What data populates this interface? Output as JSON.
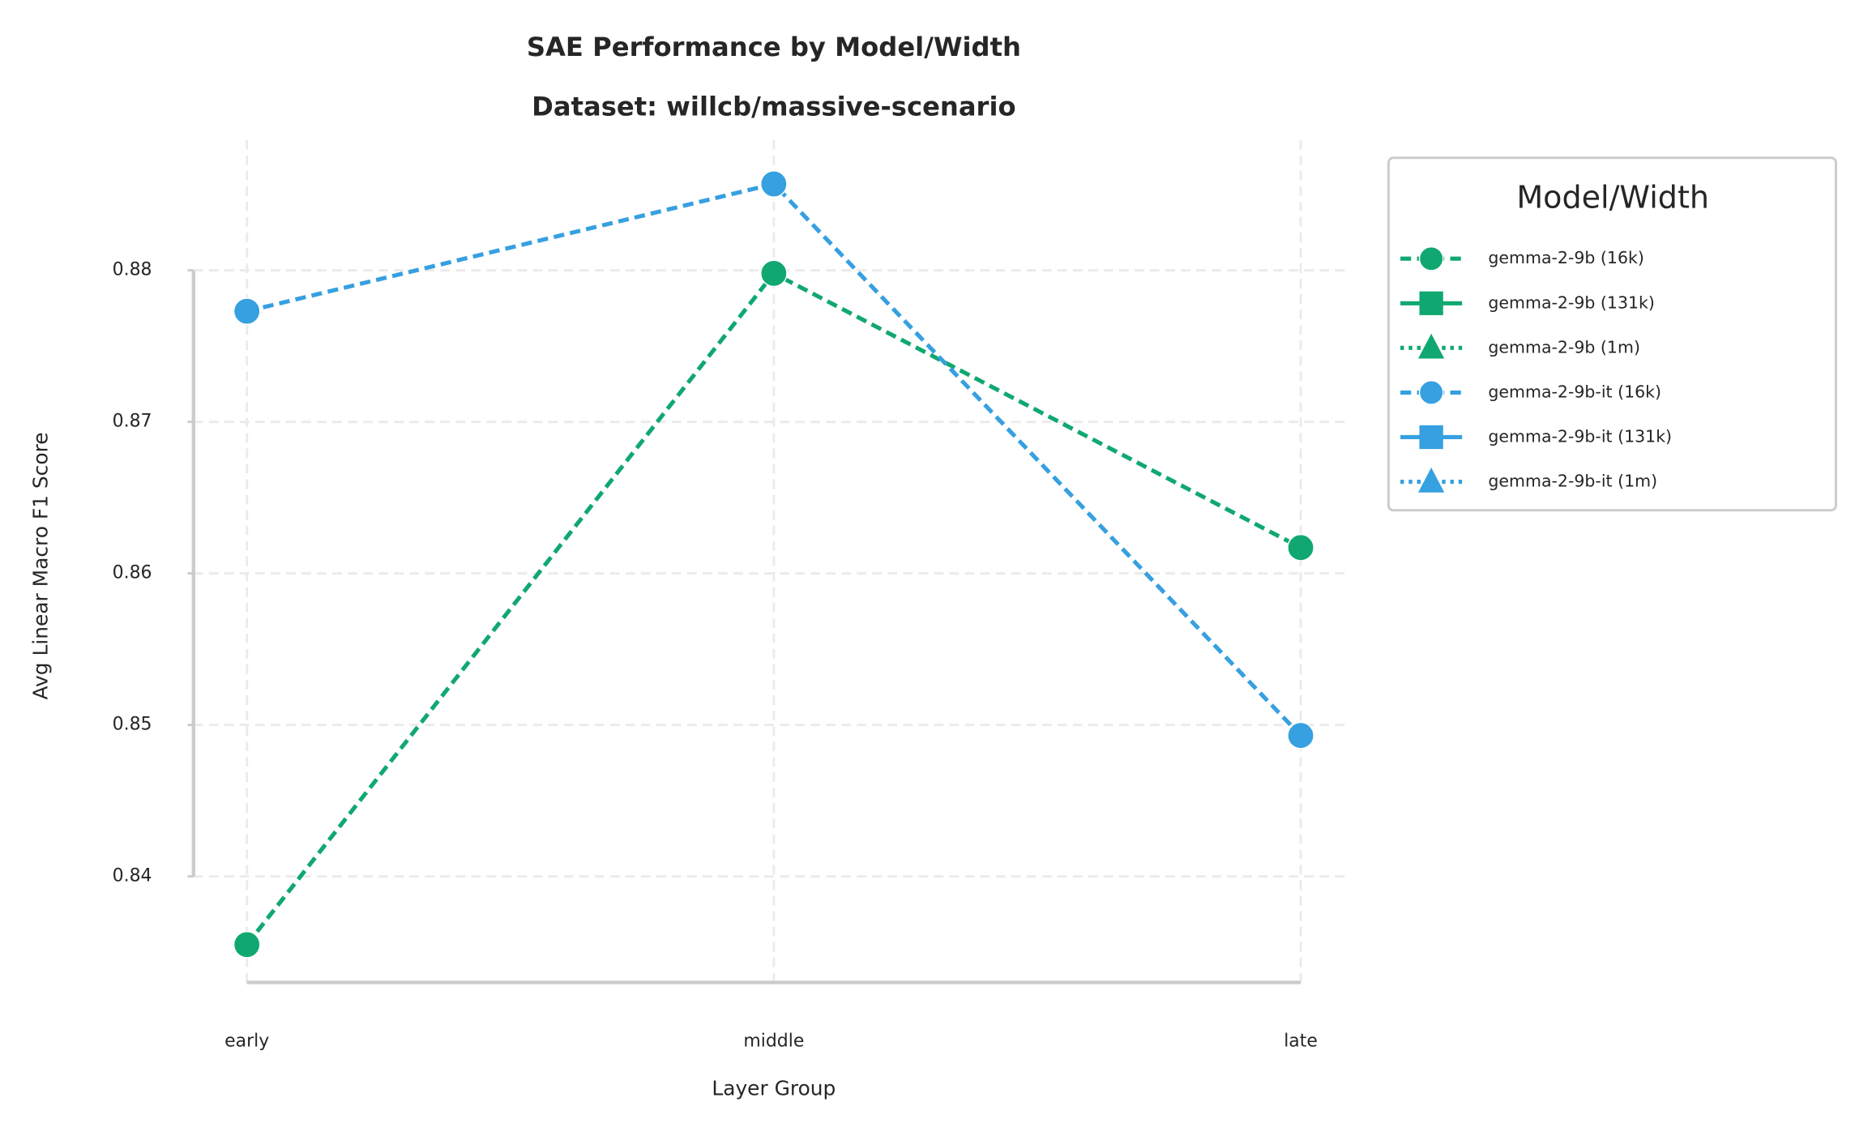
{
  "chart_data": {
    "type": "line",
    "title": "SAE Performance by Model/Width",
    "subtitle": "Dataset: willcb/massive-scenario",
    "xlabel": "Layer Group",
    "ylabel": "Avg Linear Macro F1 Score",
    "categories": [
      "early",
      "middle",
      "late"
    ],
    "ylim": [
      0.833,
      0.8886
    ],
    "yticks": [
      0.84,
      0.85,
      0.86,
      0.87,
      0.88
    ],
    "grid": true,
    "legend_title": "Model/Width",
    "legend_position": "outside right",
    "series": [
      {
        "name": "gemma-2-9b (16k)",
        "color": "#10a870",
        "marker": "circle",
        "linestyle": "dashed",
        "values": [
          0.8355,
          0.8798,
          0.8617
        ]
      },
      {
        "name": "gemma-2-9b (131k)",
        "color": "#10a870",
        "marker": "square",
        "linestyle": "solid",
        "values": [
          null,
          null,
          null
        ]
      },
      {
        "name": "gemma-2-9b (1m)",
        "color": "#10a870",
        "marker": "triangle",
        "linestyle": "dotted",
        "values": [
          null,
          null,
          null
        ]
      },
      {
        "name": "gemma-2-9b-it (16k)",
        "color": "#36a0e0",
        "marker": "circle",
        "linestyle": "dashed",
        "values": [
          0.8773,
          0.8857,
          0.8493
        ]
      },
      {
        "name": "gemma-2-9b-it (131k)",
        "color": "#36a0e0",
        "marker": "square",
        "linestyle": "solid",
        "values": [
          null,
          null,
          null
        ]
      },
      {
        "name": "gemma-2-9b-it (1m)",
        "color": "#36a0e0",
        "marker": "triangle",
        "linestyle": "dotted",
        "values": [
          null,
          null,
          null
        ]
      }
    ]
  }
}
